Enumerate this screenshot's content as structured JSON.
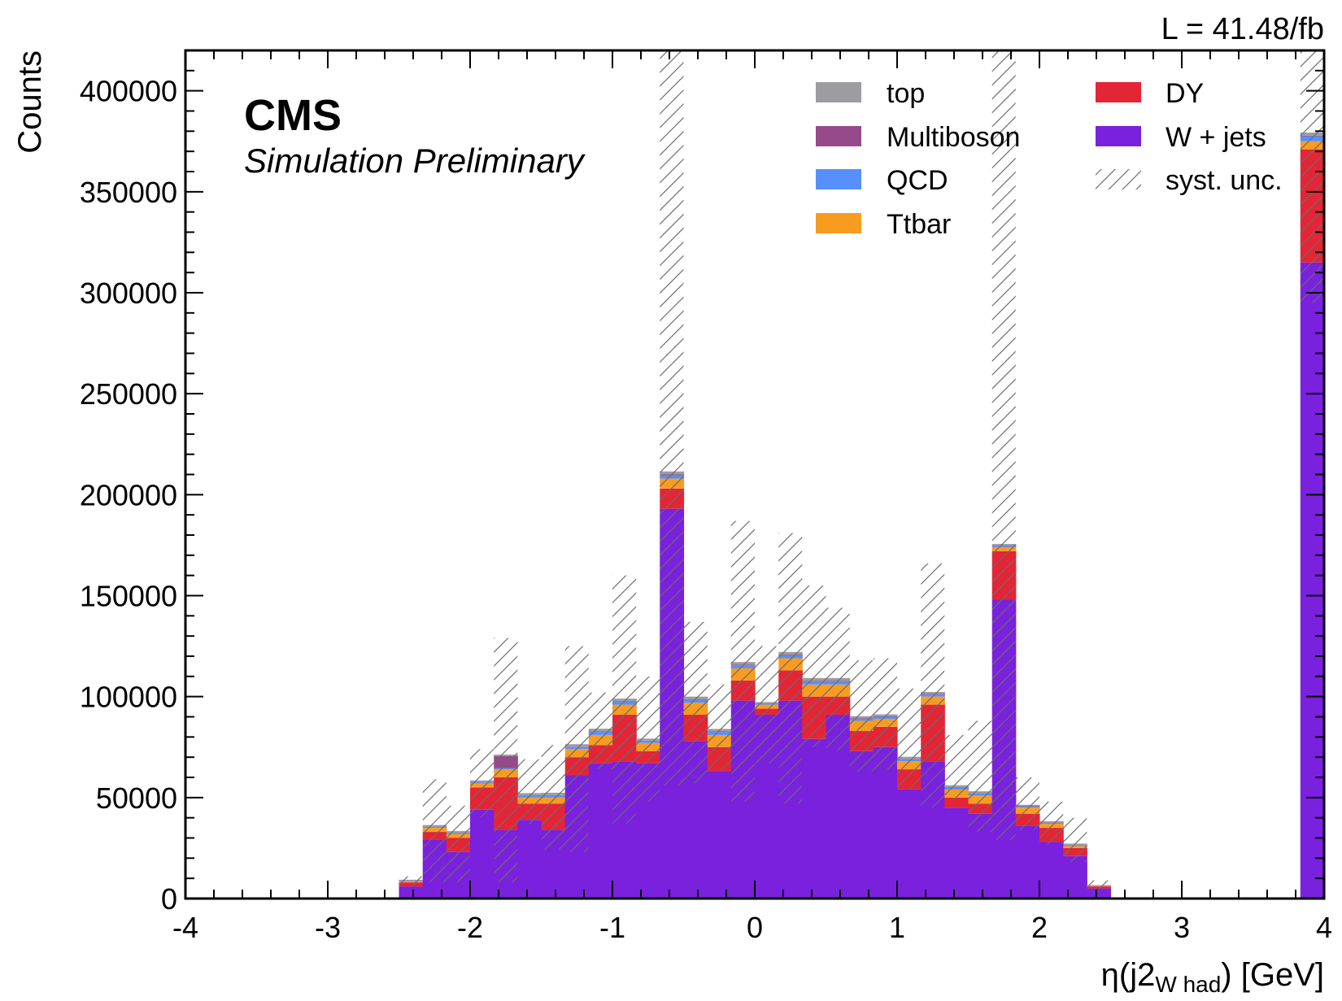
{
  "experiment": "CMS",
  "experiment_sub": "Simulation Preliminary",
  "luminosity": "L = 41.48/fb",
  "colors": {
    "top": "#9c9ca1",
    "Multiboson": "#964a8b",
    "QCD": "#5790fc",
    "Ttbar": "#f89c20",
    "DY": "#e42536",
    "W + jets": "#7a21dd"
  },
  "chart_data": {
    "type": "bar",
    "histogram": "stacked",
    "title": "",
    "xlabel": "η(j2",
    "xlabel_sub": "W had",
    "xlabel_suffix": ") [GeV]",
    "ylabel": "Counts",
    "xlim": [
      -4,
      4
    ],
    "ylim": [
      0,
      420000
    ],
    "x_ticks": [
      "-4",
      "-3",
      "-2",
      "-1",
      "0",
      "1",
      "2",
      "3",
      "4"
    ],
    "y_ticks": [
      "0",
      "50000",
      "100000",
      "150000",
      "200000",
      "250000",
      "300000",
      "350000",
      "400000"
    ],
    "legend_position": "top-right",
    "legend": [
      "top",
      "DY",
      "Multiboson",
      "W + jets",
      "QCD",
      "syst. unc.",
      "Ttbar"
    ],
    "bin_edges": [
      -2.5,
      -2.333,
      -2.167,
      -2.0,
      -1.833,
      -1.667,
      -1.5,
      -1.333,
      -1.167,
      -1.0,
      -0.833,
      -0.667,
      -0.5,
      -0.333,
      -0.167,
      0.0,
      0.167,
      0.333,
      0.5,
      0.667,
      0.833,
      1.0,
      1.167,
      1.333,
      1.5,
      1.667,
      1.833,
      2.0,
      2.167,
      2.333,
      2.5
    ],
    "overflow_bin": [
      3.833,
      4.0
    ],
    "series": [
      {
        "name": "W + jets",
        "values": [
          6000,
          29000,
          23000,
          44000,
          34000,
          39000,
          34000,
          61000,
          67000,
          68000,
          67000,
          193000,
          78000,
          63000,
          98000,
          91000,
          98000,
          79000,
          91000,
          73000,
          75000,
          54000,
          68000,
          45000,
          42000,
          148000,
          36000,
          28000,
          21000,
          5000
        ],
        "overflow": 315000
      },
      {
        "name": "DY",
        "values": [
          2000,
          4000,
          7000,
          11000,
          26000,
          8000,
          13000,
          9000,
          9000,
          23000,
          6000,
          10000,
          13000,
          12000,
          10000,
          3000,
          15000,
          21000,
          9000,
          10000,
          10000,
          10000,
          28000,
          5000,
          5000,
          24000,
          6000,
          7000,
          4000,
          1000
        ],
        "overflow": 56000
      },
      {
        "name": "Ttbar",
        "values": [
          500,
          2000,
          2000,
          2000,
          4000,
          3000,
          3000,
          4000,
          5000,
          5000,
          4000,
          5000,
          6000,
          6000,
          6000,
          2000,
          6000,
          6000,
          6000,
          5000,
          4000,
          4000,
          4000,
          4000,
          4000,
          2000,
          3000,
          2000,
          1000,
          300
        ],
        "overflow": 4000
      },
      {
        "name": "QCD",
        "values": [
          300,
          500,
          500,
          500,
          500,
          1000,
          1000,
          1000,
          1500,
          1500,
          1000,
          1500,
          1500,
          1500,
          1500,
          500,
          1500,
          1500,
          1500,
          1000,
          1000,
          1000,
          1000,
          1000,
          1000,
          500,
          500,
          500,
          500,
          100
        ],
        "overflow": 2500
      },
      {
        "name": "Multiboson",
        "values": [
          200,
          200,
          200,
          200,
          6000,
          200,
          200,
          200,
          300,
          300,
          200,
          500,
          300,
          300,
          300,
          200,
          300,
          300,
          300,
          200,
          200,
          200,
          300,
          200,
          200,
          300,
          200,
          200,
          200,
          100
        ],
        "overflow": 300
      },
      {
        "name": "top",
        "values": [
          300,
          700,
          700,
          800,
          800,
          1000,
          1200,
          1200,
          1300,
          1200,
          1000,
          1500,
          1200,
          1200,
          1300,
          600,
          1300,
          1400,
          1400,
          1100,
          1000,
          1000,
          1000,
          900,
          900,
          800,
          700,
          600,
          500,
          200
        ],
        "overflow": 1500
      }
    ],
    "syst_unc": {
      "name": "syst. unc.",
      "bands": [
        [
          6000,
          11000
        ],
        [
          8000,
          59000
        ],
        [
          8000,
          46000
        ],
        [
          40000,
          74000
        ],
        [
          8000,
          129000
        ],
        [
          37000,
          69000
        ],
        [
          24000,
          76000
        ],
        [
          23000,
          125000
        ],
        [
          64000,
          102000
        ],
        [
          37000,
          160000
        ],
        [
          48000,
          110000
        ],
        [
          56000,
          420000
        ],
        [
          57000,
          137000
        ],
        [
          64000,
          106000
        ],
        [
          48000,
          187000
        ],
        [
          67000,
          125000
        ],
        [
          47000,
          181000
        ],
        [
          75000,
          155000
        ],
        [
          73000,
          144000
        ],
        [
          63000,
          118000
        ],
        [
          64000,
          119000
        ],
        [
          54000,
          104000
        ],
        [
          45000,
          166000
        ],
        [
          49000,
          81000
        ],
        [
          33000,
          88000
        ],
        [
          29000,
          420000
        ],
        [
          34000,
          60000
        ],
        [
          27000,
          48000
        ],
        [
          18000,
          40000
        ],
        [
          5000,
          9000
        ]
      ],
      "overflow_band": [
        295000,
        420000
      ]
    }
  }
}
